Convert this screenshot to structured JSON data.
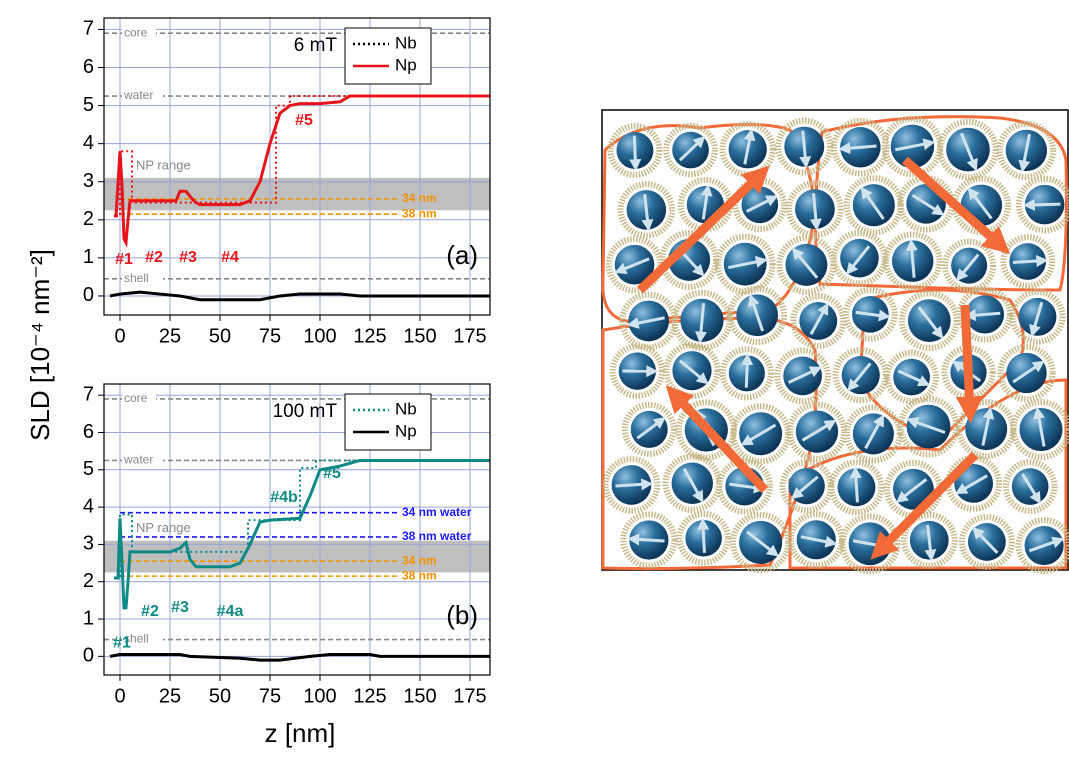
{
  "ylabel": "SLD [10⁻⁴ nm⁻²]",
  "xlabel": "z [nm]",
  "chart_data": [
    {
      "type": "line",
      "panel_label": "(a)",
      "field": "6 mT",
      "legend": "upper right",
      "grid": true,
      "xlim": [
        -8,
        185
      ],
      "xticks": [
        0,
        25,
        50,
        75,
        100,
        125,
        150,
        175
      ],
      "ylim": [
        -0.5,
        7.3
      ],
      "yticks": [
        0,
        1,
        2,
        3,
        4,
        5,
        6,
        7
      ],
      "band": {
        "label": "NP range",
        "range": [
          2.25,
          3.1
        ],
        "color": "#b4b4b4"
      },
      "hlines": [
        {
          "label": "core",
          "value": 6.9,
          "color": "#888888"
        },
        {
          "label": "water",
          "value": 5.25,
          "color": "#888888"
        },
        {
          "label": "shell",
          "value": 0.45,
          "color": "#888888"
        },
        {
          "label": "34 nm",
          "value": 2.55,
          "color": "#f39200"
        },
        {
          "label": "38 nm",
          "value": 2.15,
          "color": "#f39200"
        }
      ],
      "annotations": [
        "#1",
        "#2",
        "#3",
        "#4",
        "#5"
      ],
      "annotation_color": "#e8141b",
      "series": [
        {
          "name": "Nb",
          "color": "#000000",
          "dash": "dotted",
          "legend_only": true,
          "x": [],
          "values": []
        },
        {
          "name": "Np",
          "color": "#e8141b",
          "dash": "solid",
          "x": [
            -3,
            -2,
            0,
            1,
            2,
            3,
            4,
            5,
            6,
            10,
            20,
            28,
            30,
            33,
            36,
            38,
            40,
            60,
            65,
            70,
            75,
            80,
            85,
            90,
            100,
            110,
            115,
            120,
            185
          ],
          "values": [
            2.1,
            2.1,
            3.8,
            2.9,
            1.5,
            1.4,
            2.0,
            2.5,
            2.5,
            2.5,
            2.5,
            2.5,
            2.75,
            2.75,
            2.55,
            2.45,
            2.4,
            2.4,
            2.5,
            3.0,
            4.0,
            4.8,
            5.0,
            5.05,
            5.05,
            5.1,
            5.25,
            5.25,
            5.25
          ]
        },
        {
          "color": "#e8141b",
          "dash": "dotted",
          "x": [
            -2,
            0,
            0,
            6,
            6,
            78,
            78,
            85,
            85,
            185
          ],
          "values": [
            2.1,
            2.1,
            3.8,
            3.8,
            2.45,
            2.45,
            5.0,
            5.0,
            5.25,
            5.25
          ]
        },
        {
          "color": "#000000",
          "dash": "solid",
          "x": [
            -5,
            0,
            10,
            20,
            30,
            35,
            40,
            70,
            80,
            90,
            110,
            120,
            185
          ],
          "values": [
            0,
            0.05,
            0.1,
            0.05,
            0,
            -0.05,
            -0.1,
            -0.1,
            0,
            0.05,
            0.05,
            0,
            0
          ]
        }
      ]
    },
    {
      "type": "line",
      "panel_label": "(b)",
      "field": "100 mT",
      "legend": "upper right",
      "grid": true,
      "xlim": [
        -8,
        185
      ],
      "xticks": [
        0,
        25,
        50,
        75,
        100,
        125,
        150,
        175
      ],
      "ylim": [
        -0.5,
        7.3
      ],
      "yticks": [
        0,
        1,
        2,
        3,
        4,
        5,
        6,
        7
      ],
      "band": {
        "label": "NP range",
        "range": [
          2.25,
          3.1
        ],
        "color": "#b4b4b4"
      },
      "hlines": [
        {
          "label": "core",
          "value": 6.9,
          "color": "#888888"
        },
        {
          "label": "water",
          "value": 5.25,
          "color": "#888888"
        },
        {
          "label": "shell",
          "value": 0.45,
          "color": "#888888"
        },
        {
          "label": "34 nm water",
          "value": 3.85,
          "color": "#1a1aff"
        },
        {
          "label": "38 nm water",
          "value": 3.2,
          "color": "#1a1aff"
        },
        {
          "label": "34 nm",
          "value": 2.55,
          "color": "#f39200"
        },
        {
          "label": "38 nm",
          "value": 2.15,
          "color": "#f39200"
        }
      ],
      "annotations": [
        "#1",
        "#2",
        "#3",
        "#4a",
        "#4b",
        "#5"
      ],
      "annotation_color": "#0e8a86",
      "series": [
        {
          "name": "Nb",
          "color": "#0e8a86",
          "dash": "dotted",
          "legend_only": true,
          "x": [],
          "values": []
        },
        {
          "name": "Np",
          "color": "#000000",
          "dash": "solid",
          "x": [
            -5,
            0,
            30,
            35,
            60,
            70,
            80,
            95,
            105,
            125,
            130,
            185
          ],
          "values": [
            0,
            0.05,
            0.05,
            0,
            -0.05,
            -0.1,
            -0.1,
            0,
            0.05,
            0.05,
            0,
            0
          ]
        },
        {
          "color": "#0e8a86",
          "dash": "solid",
          "x": [
            -3,
            -1,
            0,
            1,
            2,
            3,
            4,
            5,
            6,
            25,
            30,
            33,
            35,
            38,
            55,
            60,
            65,
            70,
            75,
            90,
            95,
            100,
            105,
            110,
            120,
            185
          ],
          "values": [
            2.1,
            2.1,
            3.7,
            2.5,
            1.3,
            1.3,
            2.0,
            2.8,
            2.8,
            2.8,
            2.9,
            3.05,
            2.6,
            2.4,
            2.4,
            2.5,
            3.0,
            3.6,
            3.65,
            3.7,
            4.3,
            5.0,
            5.05,
            5.1,
            5.25,
            5.25
          ]
        },
        {
          "color": "#0e8a86",
          "dash": "dotted",
          "x": [
            -2,
            0,
            0,
            6,
            6,
            64,
            64,
            90,
            90,
            98,
            98,
            185
          ],
          "values": [
            2.1,
            2.1,
            3.8,
            3.8,
            2.8,
            2.8,
            3.65,
            3.65,
            5.05,
            5.05,
            5.25,
            5.25
          ]
        }
      ]
    }
  ]
}
